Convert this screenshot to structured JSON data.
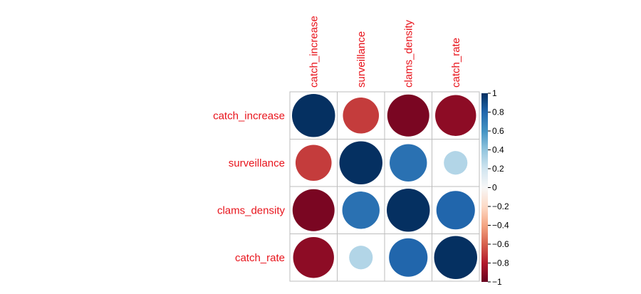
{
  "chart_data": {
    "type": "heatmap",
    "style": "correlation-circles",
    "variables": [
      "catch_increase",
      "surveillance",
      "clams_density",
      "catch_rate"
    ],
    "matrix": [
      [
        1.0,
        -0.7,
        -0.95,
        -0.9
      ],
      [
        -0.7,
        1.0,
        0.75,
        0.3
      ],
      [
        -0.95,
        0.75,
        1.0,
        0.8
      ],
      [
        -0.9,
        0.3,
        0.8,
        1.0
      ]
    ],
    "colorbar": {
      "range": [
        -1,
        1
      ],
      "ticks": [
        "1",
        "0.8",
        "0.6",
        "0.4",
        "0.2",
        "0",
        "−0.2",
        "−0.4",
        "−0.6",
        "−0.8",
        "−1"
      ],
      "tick_values": [
        1,
        0.8,
        0.6,
        0.4,
        0.2,
        0,
        -0.2,
        -0.4,
        -0.6,
        -0.8,
        -1
      ],
      "placement": "right"
    },
    "grid": true,
    "label_color": "#e8141c",
    "colors": {
      "negative_strong": "#67001f",
      "neutral": "#f7f7f7",
      "positive_strong": "#053061",
      "grid": "#bdbdbd"
    }
  }
}
